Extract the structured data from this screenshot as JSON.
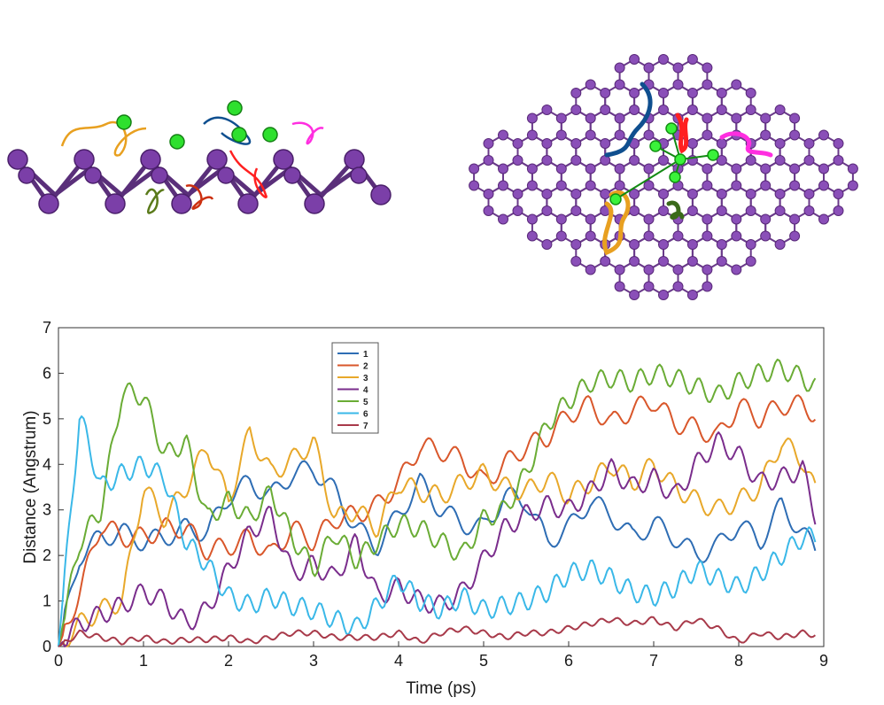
{
  "chart_data": {
    "type": "line",
    "xlabel": "Time (ps)",
    "ylabel": "Distance (Angstrum)",
    "xlim": [
      0,
      9
    ],
    "ylim": [
      0,
      7
    ],
    "x_ticks": [
      "0",
      "1",
      "2",
      "3",
      "4",
      "5",
      "6",
      "7",
      "8",
      "9"
    ],
    "y_ticks": [
      "0",
      "1",
      "2",
      "3",
      "4",
      "5",
      "6",
      "7"
    ],
    "legend_position": "top-center",
    "grid": false,
    "x": [
      0,
      0.25,
      0.5,
      0.75,
      1.0,
      1.25,
      1.5,
      1.75,
      2.0,
      2.25,
      2.5,
      2.75,
      3.0,
      3.25,
      3.5,
      3.75,
      4.0,
      4.25,
      4.5,
      4.75,
      5.0,
      5.25,
      5.5,
      5.75,
      6.0,
      6.25,
      6.5,
      6.75,
      7.0,
      7.25,
      7.5,
      7.75,
      8.0,
      8.25,
      8.5,
      8.75,
      8.9
    ],
    "series": [
      {
        "name": "1",
        "color": "#2e6db4",
        "values": [
          0.0,
          2.0,
          2.4,
          2.5,
          2.3,
          2.4,
          2.6,
          2.5,
          3.3,
          3.6,
          3.3,
          3.8,
          3.9,
          3.4,
          2.6,
          2.2,
          2.9,
          3.6,
          3.0,
          2.7,
          2.6,
          3.3,
          3.2,
          2.3,
          2.6,
          3.2,
          2.9,
          2.4,
          2.7,
          2.4,
          2.0,
          2.2,
          2.7,
          2.3,
          3.1,
          2.5,
          2.1
        ]
      },
      {
        "name": "2",
        "color": "#d9572b",
        "values": [
          0.0,
          1.2,
          2.7,
          2.4,
          2.4,
          2.6,
          2.6,
          2.1,
          2.2,
          2.4,
          2.0,
          2.6,
          2.3,
          2.8,
          2.9,
          3.1,
          3.6,
          4.4,
          4.3,
          4.1,
          3.6,
          4.0,
          4.4,
          4.6,
          5.1,
          5.3,
          4.9,
          5.2,
          5.4,
          4.9,
          4.8,
          4.6,
          5.3,
          5.0,
          5.3,
          5.3,
          5.1
        ]
      },
      {
        "name": "3",
        "color": "#e8a82a",
        "values": [
          0.0,
          0.5,
          0.8,
          1.0,
          3.5,
          2.8,
          3.5,
          4.4,
          3.2,
          4.7,
          3.8,
          4.1,
          4.5,
          2.8,
          3.0,
          2.6,
          3.6,
          3.4,
          3.3,
          3.6,
          3.8,
          3.5,
          3.4,
          3.7,
          3.3,
          3.6,
          4.0,
          3.6,
          4.0,
          3.5,
          3.2,
          3.0,
          3.2,
          3.5,
          4.5,
          4.1,
          3.4
        ]
      },
      {
        "name": "4",
        "color": "#7a2d8c",
        "values": [
          0.0,
          0.5,
          0.7,
          0.9,
          1.2,
          1.0,
          0.5,
          0.8,
          1.7,
          2.5,
          2.9,
          1.6,
          1.8,
          1.5,
          2.3,
          1.1,
          1.3,
          1.0,
          0.9,
          1.2,
          1.9,
          2.6,
          2.9,
          3.1,
          3.0,
          3.4,
          3.9,
          3.5,
          3.7,
          3.3,
          4.0,
          4.5,
          4.2,
          3.6,
          3.7,
          3.9,
          2.9
        ]
      },
      {
        "name": "5",
        "color": "#6aac35",
        "values": [
          0.0,
          2.3,
          3.0,
          5.6,
          5.5,
          4.2,
          4.5,
          2.8,
          3.2,
          2.8,
          3.4,
          2.4,
          1.7,
          2.5,
          1.9,
          2.3,
          2.7,
          2.6,
          2.3,
          2.0,
          2.8,
          3.0,
          3.8,
          4.9,
          5.4,
          5.8,
          5.9,
          5.8,
          6.0,
          5.9,
          5.7,
          5.5,
          5.8,
          6.0,
          6.1,
          5.9,
          5.7
        ]
      },
      {
        "name": "6",
        "color": "#3ab8e8",
        "values": [
          0.0,
          5.1,
          3.5,
          3.8,
          4.0,
          3.7,
          2.3,
          1.8,
          1.1,
          0.9,
          1.1,
          0.9,
          0.8,
          0.6,
          0.4,
          0.9,
          1.5,
          1.0,
          0.8,
          1.1,
          0.8,
          0.9,
          1.0,
          1.2,
          1.6,
          1.7,
          1.5,
          1.2,
          1.1,
          1.3,
          1.7,
          1.5,
          1.3,
          1.6,
          2.0,
          2.4,
          2.4
        ]
      },
      {
        "name": "7",
        "color": "#a83a4a",
        "values": [
          0.0,
          0.3,
          0.2,
          0.1,
          0.2,
          0.1,
          0.15,
          0.15,
          0.2,
          0.1,
          0.2,
          0.3,
          0.3,
          0.2,
          0.2,
          0.2,
          0.3,
          0.1,
          0.3,
          0.4,
          0.3,
          0.2,
          0.3,
          0.3,
          0.4,
          0.5,
          0.6,
          0.5,
          0.6,
          0.4,
          0.6,
          0.4,
          0.1,
          0.3,
          0.2,
          0.3,
          0.25
        ]
      }
    ]
  },
  "molecule_figures": {
    "atom_color": "#8a4fb8",
    "adatom_color": "#2ee02e",
    "bond_color": "#6a3a8a",
    "trajectory_colors": [
      "#0f4f8f",
      "#e8a020",
      "#ff2020",
      "#1c8a2c",
      "#ff2ee0",
      "#cc3010",
      "#5a7a1a"
    ]
  }
}
